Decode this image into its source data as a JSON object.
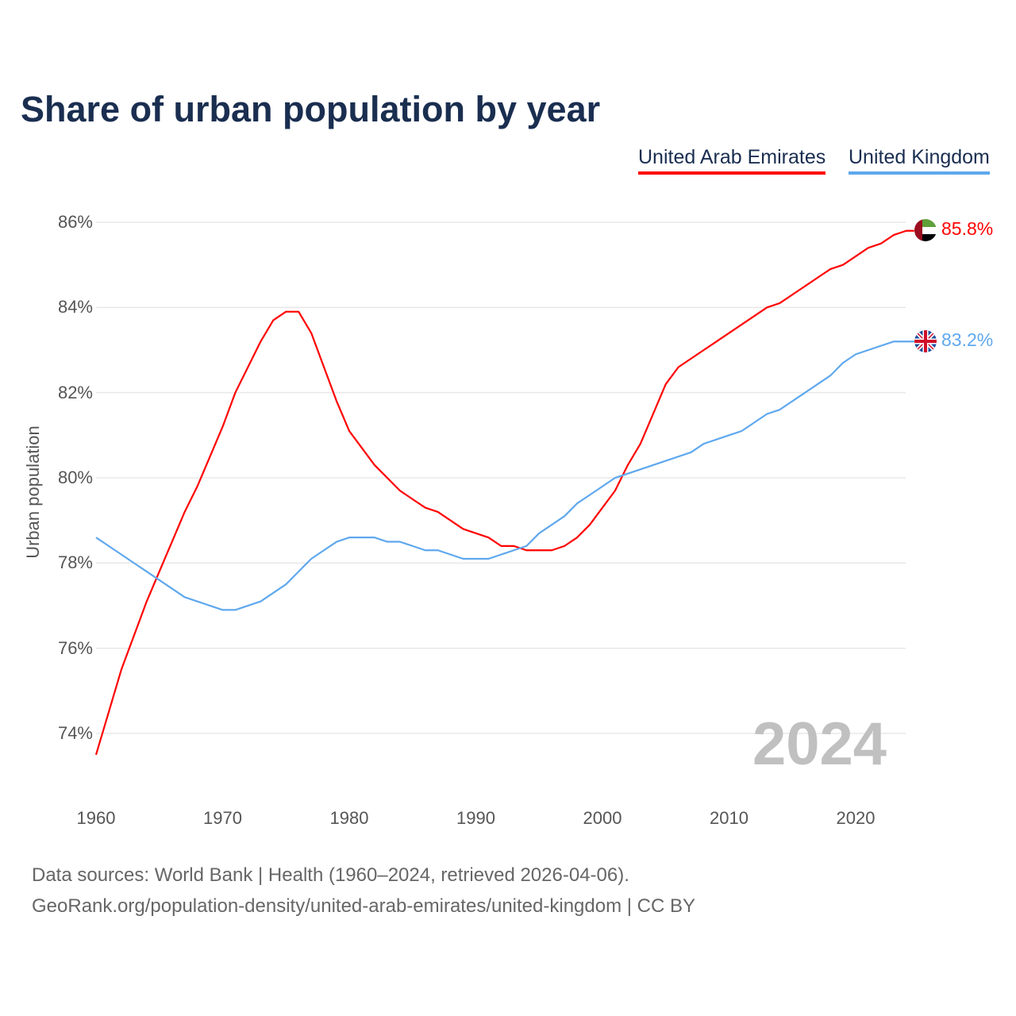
{
  "title": "Share of urban population by year",
  "legend": [
    {
      "name": "United Arab Emirates",
      "color": "#ff0000"
    },
    {
      "name": "United Kingdom",
      "color": "#5fa8ee"
    }
  ],
  "big_year": "2024",
  "end_labels": {
    "uae": "85.8%",
    "uk": "83.2%"
  },
  "footer": {
    "line1": "Data sources: World Bank | Health (1960–2024, retrieved 2026-04-06).",
    "line2": "GeoRank.org/population-density/united-arab-emirates/united-kingdom | CC BY"
  },
  "chart_data": {
    "type": "line",
    "title": "Share of urban population by year",
    "xlabel": "",
    "ylabel": "Urban population",
    "ylim": [
      73.5,
      86
    ],
    "xlim": [
      1960,
      2024
    ],
    "yticks": [
      "74%",
      "76%",
      "78%",
      "80%",
      "82%",
      "84%",
      "86%"
    ],
    "ytick_values": [
      74,
      76,
      78,
      80,
      82,
      84,
      86
    ],
    "xticks": [
      "1960",
      "1970",
      "1980",
      "1990",
      "2000",
      "2010",
      "2020"
    ],
    "grid": true,
    "legend_position": "top-right",
    "x_start": 1960,
    "series": [
      {
        "name": "United Arab Emirates",
        "color": "#ff0000",
        "values": [
          73.5,
          74.5,
          75.5,
          76.3,
          77.1,
          77.8,
          78.5,
          79.2,
          79.8,
          80.5,
          81.2,
          82.0,
          82.6,
          83.2,
          83.7,
          83.9,
          83.9,
          83.4,
          82.6,
          81.8,
          81.1,
          80.7,
          80.3,
          80.0,
          79.7,
          79.5,
          79.3,
          79.2,
          79.0,
          78.8,
          78.7,
          78.6,
          78.4,
          78.4,
          78.3,
          78.3,
          78.3,
          78.4,
          78.6,
          78.9,
          79.3,
          79.7,
          80.3,
          80.8,
          81.5,
          82.2,
          82.6,
          82.8,
          83.0,
          83.2,
          83.4,
          83.6,
          83.8,
          84.0,
          84.1,
          84.3,
          84.5,
          84.7,
          84.9,
          85.0,
          85.2,
          85.4,
          85.5,
          85.7,
          85.8
        ]
      },
      {
        "name": "United Kingdom",
        "color": "#5fa8ee",
        "values": [
          78.6,
          78.4,
          78.2,
          78.0,
          77.8,
          77.6,
          77.4,
          77.2,
          77.1,
          77.0,
          76.9,
          76.9,
          77.0,
          77.1,
          77.3,
          77.5,
          77.8,
          78.1,
          78.3,
          78.5,
          78.6,
          78.6,
          78.6,
          78.5,
          78.5,
          78.4,
          78.3,
          78.3,
          78.2,
          78.1,
          78.1,
          78.1,
          78.2,
          78.3,
          78.4,
          78.7,
          78.9,
          79.1,
          79.4,
          79.6,
          79.8,
          80.0,
          80.1,
          80.2,
          80.3,
          80.4,
          80.5,
          80.6,
          80.8,
          80.9,
          81.0,
          81.1,
          81.3,
          81.5,
          81.6,
          81.8,
          82.0,
          82.2,
          82.4,
          82.7,
          82.9,
          83.0,
          83.1,
          83.2,
          83.2
        ]
      }
    ]
  }
}
